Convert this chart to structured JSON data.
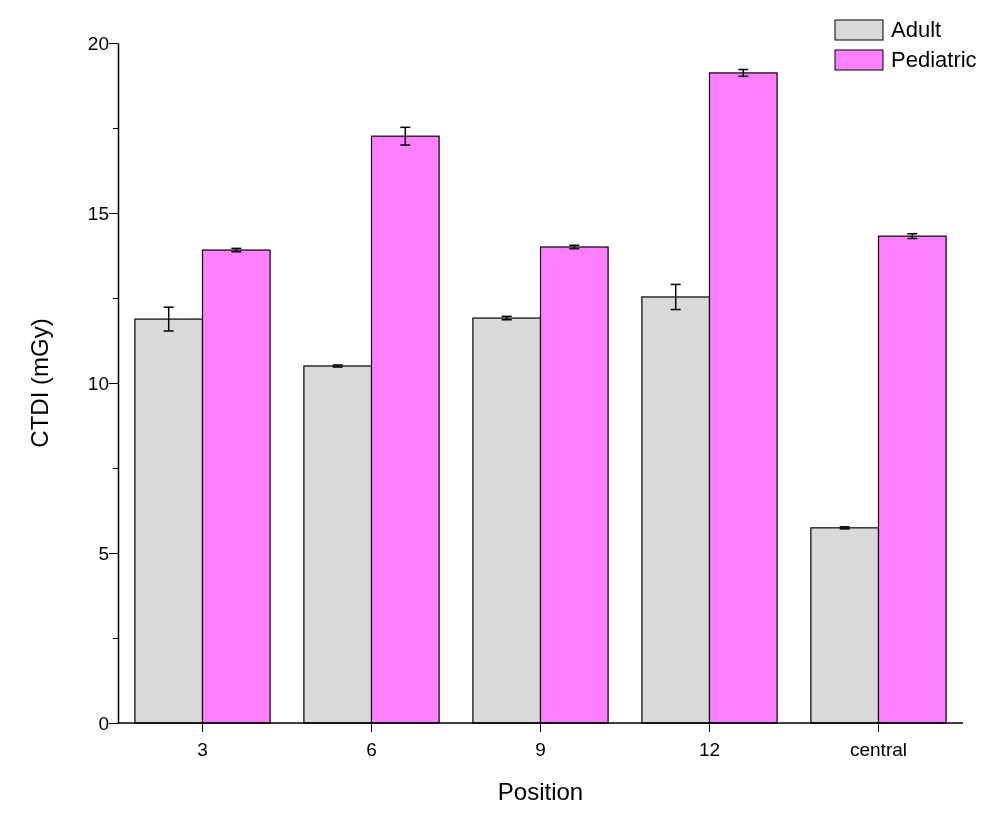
{
  "chart_data": {
    "type": "bar",
    "xlabel": "Position",
    "ylabel": "CTDI (mGy)",
    "categories": [
      "3",
      "6",
      "9",
      "12",
      "central"
    ],
    "series": [
      {
        "name": "Adult",
        "color": "#d9d9d9",
        "values": [
          11.88,
          10.5,
          11.91,
          12.53,
          5.74
        ],
        "errors": [
          0.35,
          0.03,
          0.05,
          0.37,
          0.03
        ]
      },
      {
        "name": "Pediatric",
        "color": "#ff80ff",
        "values": [
          13.91,
          17.26,
          14.0,
          19.12,
          14.32
        ],
        "errors": [
          0.05,
          0.26,
          0.05,
          0.1,
          0.07
        ]
      }
    ],
    "ylim": [
      0,
      20
    ],
    "yticks": [
      0,
      {
        "value": 2.5,
        "label": null
      },
      5,
      {
        "value": 7.5,
        "label": null
      },
      10,
      {
        "value": 12.5,
        "label": null
      },
      15,
      {
        "value": 17.5,
        "label": null
      },
      20
    ],
    "legend": "top right"
  }
}
